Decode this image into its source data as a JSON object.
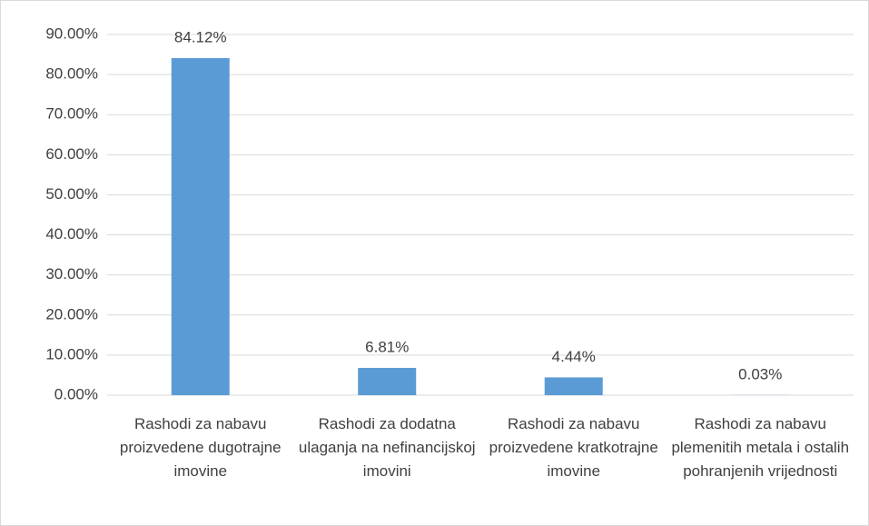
{
  "chart_data": {
    "type": "bar",
    "categories": [
      "Rashodi za nabavu proizvedene dugotrajne imovine",
      "Rashodi za dodatna ulaganja na nefinancijskoj imovini",
      "Rashodi za nabavu proizvedene kratkotrajne imovine",
      "Rashodi za nabavu plemenitih metala i ostalih pohranjenih vrijednosti"
    ],
    "values": [
      84.12,
      6.81,
      4.44,
      0.03
    ],
    "value_labels": [
      "84.12%",
      "6.81%",
      "4.44%",
      "0.03%"
    ],
    "color": "#5b9bd5",
    "ylim": [
      0,
      90
    ],
    "yticks": [
      {
        "value": 0,
        "label": "0.00%"
      },
      {
        "value": 10,
        "label": "10.00%"
      },
      {
        "value": 20,
        "label": "20.00%"
      },
      {
        "value": 30,
        "label": "30.00%"
      },
      {
        "value": 40,
        "label": "40.00%"
      },
      {
        "value": 50,
        "label": "50.00%"
      },
      {
        "value": 60,
        "label": "60.00%"
      },
      {
        "value": 70,
        "label": "70.00%"
      },
      {
        "value": 80,
        "label": "80.00%"
      },
      {
        "value": 90,
        "label": "90.00%"
      }
    ],
    "grid": true
  }
}
